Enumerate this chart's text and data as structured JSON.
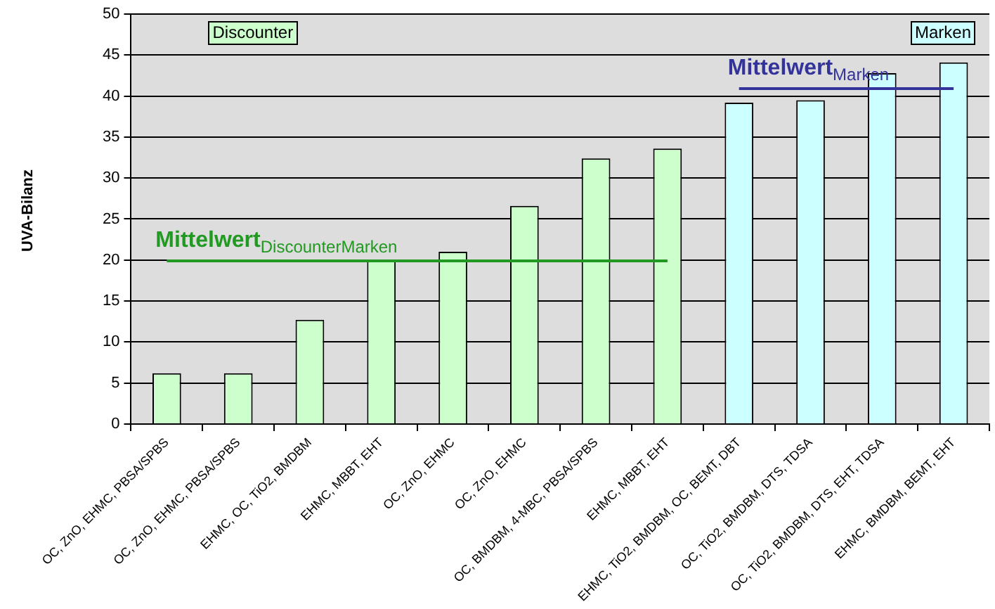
{
  "chart_data": {
    "type": "bar",
    "ylabel": "UVA-Bilanz",
    "categories": [
      "OC, ZnO, EHMC, PBSA/SPBS",
      "OC, ZnO, EHMC, PBSA/SPBS",
      "EHMC, OC, TiO2, BMDBM",
      "EHMC, MBBT, EHT",
      "OC, ZnO, EHMC",
      "OC, ZnO, EHMC",
      "OC, BMDBM, 4-MBC, PBSA/SPBS",
      "EHMC, MBBT, EHT",
      "EHMC, TiO2, BMDBM, OC, BEMT, DBT",
      "OC, TiO2, BMDBM, DTS, TDSA",
      "OC, TiO2, BMDBM, DTS, EHT, TDSA",
      "EHMC, BMDBM, BEMT, EHT"
    ],
    "series": [
      {
        "values": [
          6.2,
          6.2,
          12.7,
          19.9,
          21,
          26.6,
          32.4,
          33.6,
          39.2,
          39.5,
          42.8,
          44.1
        ],
        "colors": [
          "#ccffcc",
          "#ccffcc",
          "#ccffcc",
          "#ccffcc",
          "#ccffcc",
          "#ccffcc",
          "#ccffcc",
          "#ccffcc",
          "#ccffff",
          "#ccffff",
          "#ccffff",
          "#ccffff"
        ]
      },
      {
        "type": "line",
        "name": "Mittelwert$_{DiscounterMarken}$",
        "color": "#229922",
        "values": [
          19.9,
          19.9,
          19.9,
          19.9,
          19.9,
          19.9,
          19.9,
          19.9,
          null,
          null,
          null,
          null
        ]
      },
      {
        "type": "line",
        "name": "Mittelwert$_{Marken}$",
        "color": "#333399",
        "values": [
          null,
          null,
          null,
          null,
          null,
          null,
          null,
          null,
          40.9,
          40.9,
          40.9,
          40.9
        ]
      }
    ],
    "annotations": [
      "Discounter",
      "Marken"
    ],
    "ylim": [
      0,
      50
    ],
    "yticks": [
      0,
      5,
      10,
      15,
      20,
      25,
      30,
      35,
      40,
      45,
      50
    ],
    "grid": "y",
    "legend": false
  }
}
